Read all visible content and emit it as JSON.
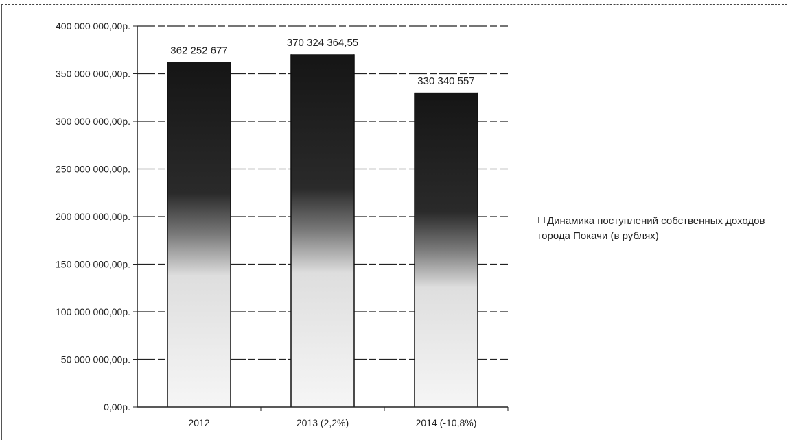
{
  "chart_data": {
    "type": "bar",
    "categories": [
      "2012",
      "2013 (2,2%)",
      "2014 (-10,8%)"
    ],
    "series": [
      {
        "name": "Динамика поступлений собственных доходов города Покачи (в рублях)",
        "values": [
          362252677,
          370324364.55,
          330340557
        ]
      }
    ],
    "data_labels": [
      "362 252 677",
      "370 324 364,55",
      "330 340 557"
    ],
    "y_ticks": [
      {
        "value": 0,
        "label": "0,00р."
      },
      {
        "value": 50000000,
        "label": "50 000 000,00р."
      },
      {
        "value": 100000000,
        "label": "100 000 000,00р."
      },
      {
        "value": 150000000,
        "label": "150 000 000,00р."
      },
      {
        "value": 200000000,
        "label": "200 000 000,00р."
      },
      {
        "value": 250000000,
        "label": "250 000 000,00р."
      },
      {
        "value": 300000000,
        "label": "300 000 000,00р."
      },
      {
        "value": 350000000,
        "label": "350 000 000,00р."
      },
      {
        "value": 400000000,
        "label": "400 000 000,00р."
      }
    ],
    "ylim": [
      0,
      400000000
    ],
    "grid": true,
    "legend_position": "right",
    "title": "",
    "xlabel": "",
    "ylabel": ""
  },
  "legend": {
    "label": "Динамика поступлений собственных доходов города Покачи (в рублях)"
  },
  "colors": {
    "bar_top": "#151515",
    "bar_mid": "#6a6a6a",
    "bar_bottom": "#f2f2f2",
    "bar_edge": "#111111",
    "grid": "#222222"
  }
}
